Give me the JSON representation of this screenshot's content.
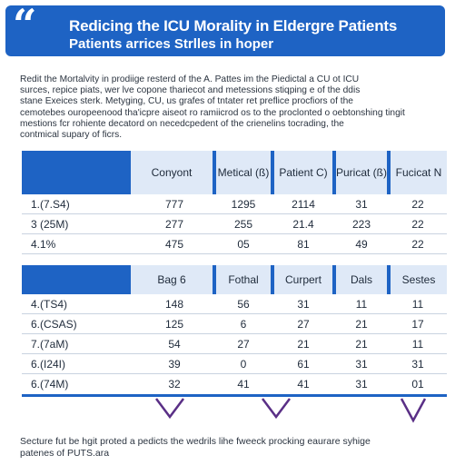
{
  "header": {
    "quote_glyph": "“",
    "title": "Redicing the ICU Morality in Eldergre Patients",
    "subtitle": "Patients arrices Strlles in hoper"
  },
  "intro": [
    "Redit the Mortalvity in prodiige resterd of the A. Pattes im the Piedictal a CU ot ICU",
    "surces, repice piats, wer lve copone thariecot and metessions stiqping e of the ddis",
    "stane Exeices sterk. Metyging, CU, us grafes of tntater ret preflice procfiors of the",
    "cemotebes ouropeenood tha'icpre aiseot ro ramiicrod os to the proclonted o oebtonshing tingit",
    "mestions fcr rohiente decatord on necedcpedent of the crienelins tocrading, the",
    "contmical supary of ficrs."
  ],
  "table1": {
    "headers": [
      "",
      "Conyont",
      "Metical (ß)",
      "Patient C)",
      "Puricat (ß)",
      "Fucicat N"
    ],
    "rows": [
      [
        "1.(7.S4)",
        "777",
        "1295",
        "2114",
        "31",
        "22"
      ],
      [
        "3 (25M)",
        "277",
        "255",
        "21.4",
        "223",
        "22"
      ],
      [
        "4.1%",
        "475",
        "05",
        "81",
        "49",
        "22"
      ]
    ]
  },
  "table2": {
    "headers": [
      "",
      "Bag 6",
      "Fothal",
      "Curpert",
      "Dals",
      "Sestes"
    ],
    "rows": [
      [
        "4.(TS4)",
        "148",
        "56",
        "31",
        "11",
        "11"
      ],
      [
        "6.(CSAS)",
        "125",
        "6",
        "27",
        "21",
        "17"
      ],
      [
        "7.(7aM)",
        "54",
        "27",
        "21",
        "21",
        "11"
      ],
      [
        "6.(I24I)",
        "39",
        "0",
        "61",
        "31",
        "31"
      ],
      [
        "6.(74M)",
        "32",
        "41",
        "41",
        "31",
        "01"
      ]
    ]
  },
  "footer": [
    "Secture fut be hgit proted a pedicts the wedrils lihe fweeck procking eaurare syhige",
    "patenes of PUTS.ara"
  ],
  "colors": {
    "accent": "#1e63c4",
    "header_cell": "#dfe9f7",
    "text": "#1e2a3a"
  }
}
